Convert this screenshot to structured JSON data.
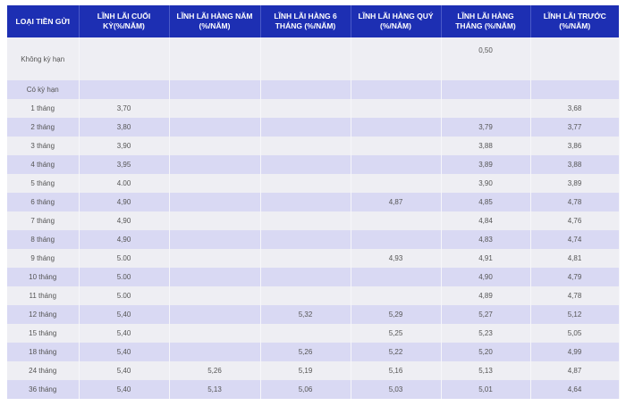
{
  "colors": {
    "header": "#1d2fb3",
    "row_light": "#eeeef3",
    "row_dark": "#d9d9f3"
  },
  "headers": [
    "LOẠI TIỀN GỬI",
    "LĨNH LÃI CUỐI KỲ(%/NĂM)",
    "LĨNH LÃI HÀNG NĂM (%/NĂM)",
    "LĨNH LÃI HÀNG 6 THÁNG (%/NĂM)",
    "LĨNH LÃI HÀNG QUÝ (%/NĂM)",
    "LĨNH LÃI HÀNG THÁNG (%/NĂM)",
    "LĨNH LÃI TRƯỚC (%/NĂM)"
  ],
  "rows": [
    [
      "Không kỳ hạn",
      "",
      "",
      "",
      "",
      "0,50",
      ""
    ],
    [
      "Có kỳ hạn",
      "",
      "",
      "",
      "",
      "",
      ""
    ],
    [
      "1 tháng",
      "3,70",
      "",
      "",
      "",
      "",
      "3,68"
    ],
    [
      "2 tháng",
      "3,80",
      "",
      "",
      "",
      "3,79",
      "3,77"
    ],
    [
      "3 tháng",
      "3,90",
      "",
      "",
      "",
      "3,88",
      "3,86"
    ],
    [
      "4 tháng",
      "3,95",
      "",
      "",
      "",
      "3,89",
      "3,88"
    ],
    [
      "5 tháng",
      "4.00",
      "",
      "",
      "",
      "3,90",
      "3,89"
    ],
    [
      "6 tháng",
      "4,90",
      "",
      "",
      "4,87",
      "4,85",
      "4,78"
    ],
    [
      "7 tháng",
      "4,90",
      "",
      "",
      "",
      "4,84",
      "4,76"
    ],
    [
      "8 tháng",
      "4,90",
      "",
      "",
      "",
      "4,83",
      "4,74"
    ],
    [
      "9 tháng",
      "5.00",
      "",
      "",
      "4,93",
      "4,91",
      "4,81"
    ],
    [
      "10 tháng",
      "5.00",
      "",
      "",
      "",
      "4,90",
      "4,79"
    ],
    [
      "11 tháng",
      "5.00",
      "",
      "",
      "",
      "4,89",
      "4,78"
    ],
    [
      "12 tháng",
      "5,40",
      "",
      "5,32",
      "5,29",
      "5,27",
      "5,12"
    ],
    [
      "15 tháng",
      "5,40",
      "",
      "",
      "5,25",
      "5,23",
      "5,05"
    ],
    [
      "18 tháng",
      "5,40",
      "",
      "5,26",
      "5,22",
      "5,20",
      "4,99"
    ],
    [
      "24 tháng",
      "5,40",
      "5,26",
      "5,19",
      "5,16",
      "5,13",
      "4,87"
    ],
    [
      "36 tháng",
      "5,40",
      "5,13",
      "5,06",
      "5,03",
      "5,01",
      "4,64"
    ]
  ]
}
